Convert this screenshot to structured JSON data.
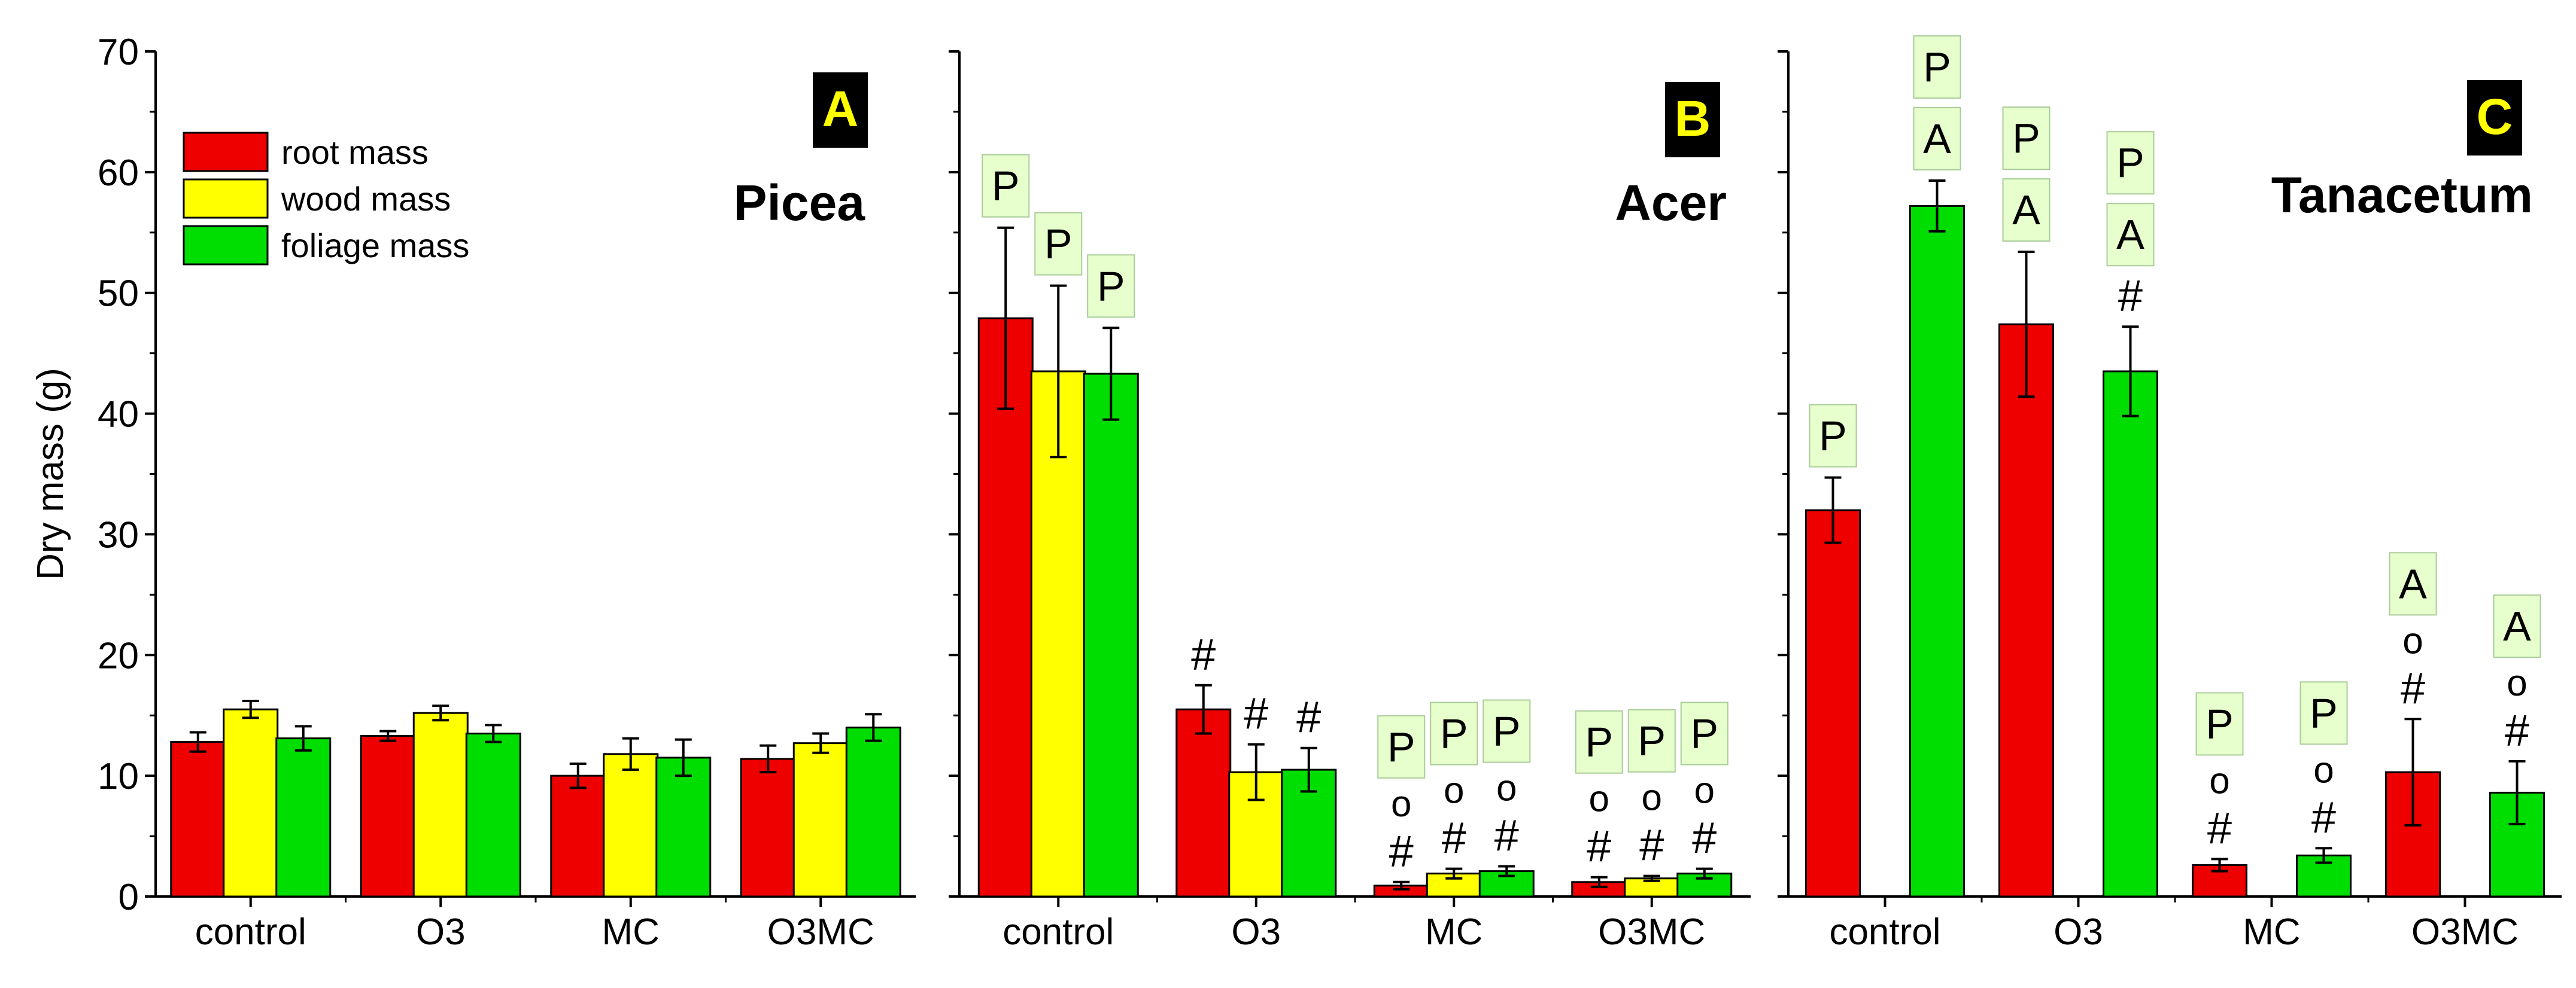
{
  "colors": {
    "root": "#ee0000",
    "wood": "#ffff00",
    "foliage": "#00dd00",
    "annotation_box": "#e6ffcc",
    "panel_label_bg": "#000000",
    "panel_label_text": "#ffff00"
  },
  "ylabel": "Dry mass (g)",
  "legend": {
    "root": "root mass",
    "wood": "wood mass",
    "foliage": "foliage mass"
  },
  "chart_data": [
    {
      "type": "bar",
      "panel": "A",
      "title": "Picea",
      "categories": [
        "control",
        "O3",
        "MC",
        "O3MC"
      ],
      "ylim": [
        0,
        70
      ],
      "yticks": [
        0,
        10,
        20,
        30,
        40,
        50,
        60,
        70
      ],
      "series": [
        {
          "name": "root mass",
          "key": "root",
          "values": [
            12.8,
            13.3,
            10.0,
            11.4
          ],
          "errors": [
            0.8,
            0.4,
            1.0,
            1.1
          ]
        },
        {
          "name": "wood mass",
          "key": "wood",
          "values": [
            15.5,
            15.2,
            11.8,
            12.7
          ],
          "errors": [
            0.7,
            0.6,
            1.3,
            0.8
          ]
        },
        {
          "name": "foliage mass",
          "key": "foliage",
          "values": [
            13.1,
            13.5,
            11.5,
            14.0
          ],
          "errors": [
            1.0,
            0.7,
            1.5,
            1.1
          ]
        }
      ],
      "annotations": []
    },
    {
      "type": "bar",
      "panel": "B",
      "title": "Acer",
      "categories": [
        "control",
        "O3",
        "MC",
        "O3MC"
      ],
      "ylim": [
        0,
        70
      ],
      "yticks": [
        0,
        10,
        20,
        30,
        40,
        50,
        60,
        70
      ],
      "series": [
        {
          "name": "root mass",
          "key": "root",
          "values": [
            47.9,
            15.5,
            0.9,
            1.2
          ],
          "errors": [
            7.5,
            2.0,
            0.3,
            0.4
          ]
        },
        {
          "name": "wood mass",
          "key": "wood",
          "values": [
            43.5,
            10.3,
            1.9,
            1.5
          ],
          "errors": [
            7.1,
            2.3,
            0.4,
            0.2
          ]
        },
        {
          "name": "foliage mass",
          "key": "foliage",
          "values": [
            43.3,
            10.5,
            2.1,
            1.9
          ],
          "errors": [
            3.8,
            1.8,
            0.4,
            0.4
          ]
        }
      ],
      "annotations": [
        {
          "group": 0,
          "series": 0,
          "marks": [
            "P"
          ]
        },
        {
          "group": 0,
          "series": 1,
          "marks": [
            "P"
          ]
        },
        {
          "group": 0,
          "series": 2,
          "marks": [
            "P"
          ]
        },
        {
          "group": 1,
          "series": 0,
          "marks": [
            "#"
          ]
        },
        {
          "group": 1,
          "series": 1,
          "marks": [
            "#"
          ]
        },
        {
          "group": 1,
          "series": 2,
          "marks": [
            "#"
          ]
        },
        {
          "group": 2,
          "series": 0,
          "marks": [
            "#",
            "o",
            "P"
          ]
        },
        {
          "group": 2,
          "series": 1,
          "marks": [
            "#",
            "o",
            "P"
          ]
        },
        {
          "group": 2,
          "series": 2,
          "marks": [
            "#",
            "o",
            "P"
          ]
        },
        {
          "group": 3,
          "series": 0,
          "marks": [
            "#",
            "o",
            "P"
          ]
        },
        {
          "group": 3,
          "series": 1,
          "marks": [
            "#",
            "o",
            "P"
          ]
        },
        {
          "group": 3,
          "series": 2,
          "marks": [
            "#",
            "o",
            "P"
          ]
        }
      ]
    },
    {
      "type": "bar",
      "panel": "C",
      "title": "Tanacetum",
      "categories": [
        "control",
        "O3",
        "MC",
        "O3MC"
      ],
      "ylim": [
        0,
        70
      ],
      "yticks": [
        0,
        10,
        20,
        30,
        40,
        50,
        60,
        70
      ],
      "series": [
        {
          "name": "root mass",
          "key": "root",
          "values": [
            32.0,
            47.4,
            2.6,
            10.3
          ],
          "errors": [
            2.7,
            6.0,
            0.5,
            4.4
          ]
        },
        {
          "name": "foliage mass",
          "key": "foliage",
          "values": [
            57.2,
            43.5,
            3.4,
            8.6
          ],
          "errors": [
            2.1,
            3.7,
            0.6,
            2.6
          ]
        }
      ],
      "annotations": [
        {
          "group": 0,
          "series": 0,
          "marks": [
            "P"
          ]
        },
        {
          "group": 0,
          "series": 1,
          "marks": [
            "A",
            "P"
          ]
        },
        {
          "group": 1,
          "series": 0,
          "marks": [
            "A",
            "P"
          ]
        },
        {
          "group": 1,
          "series": 1,
          "marks": [
            "#",
            "A",
            "P"
          ]
        },
        {
          "group": 2,
          "series": 0,
          "marks": [
            "#",
            "o",
            "P"
          ]
        },
        {
          "group": 2,
          "series": 1,
          "marks": [
            "#",
            "o",
            "P"
          ]
        },
        {
          "group": 3,
          "series": 0,
          "marks": [
            "#",
            "o",
            "A"
          ]
        },
        {
          "group": 3,
          "series": 1,
          "marks": [
            "#",
            "o",
            "A"
          ]
        }
      ]
    }
  ]
}
